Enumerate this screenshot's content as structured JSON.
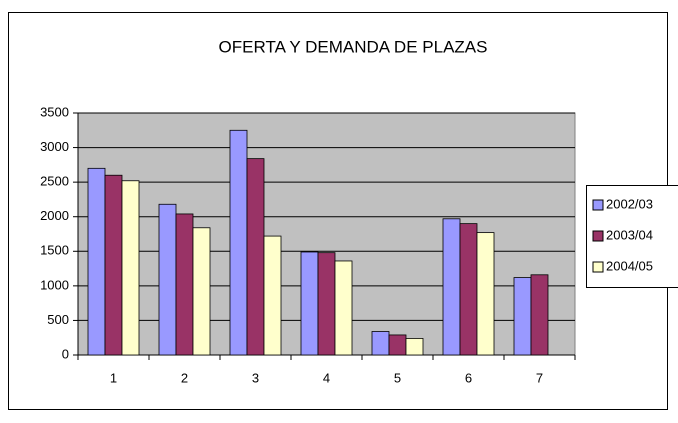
{
  "chart_data": {
    "type": "bar",
    "title": "OFERTA Y DEMANDA DE PLAZAS",
    "categories": [
      "1",
      "2",
      "3",
      "4",
      "5",
      "6",
      "7"
    ],
    "series": [
      {
        "name": "2002/03",
        "color": "#9999ff",
        "values": [
          2700,
          2180,
          3250,
          1490,
          340,
          1970,
          1120
        ]
      },
      {
        "name": "2003/04",
        "color": "#993366",
        "values": [
          2600,
          2040,
          2840,
          1480,
          290,
          1900,
          1160
        ]
      },
      {
        "name": "2004/05",
        "color": "#ffffcc",
        "values": [
          2520,
          1840,
          1720,
          1360,
          240,
          1770,
          null
        ]
      }
    ],
    "ylim": [
      0,
      3500
    ],
    "yticks": [
      0,
      500,
      1000,
      1500,
      2000,
      2500,
      3000,
      3500
    ],
    "grid": true,
    "legend": "right"
  }
}
